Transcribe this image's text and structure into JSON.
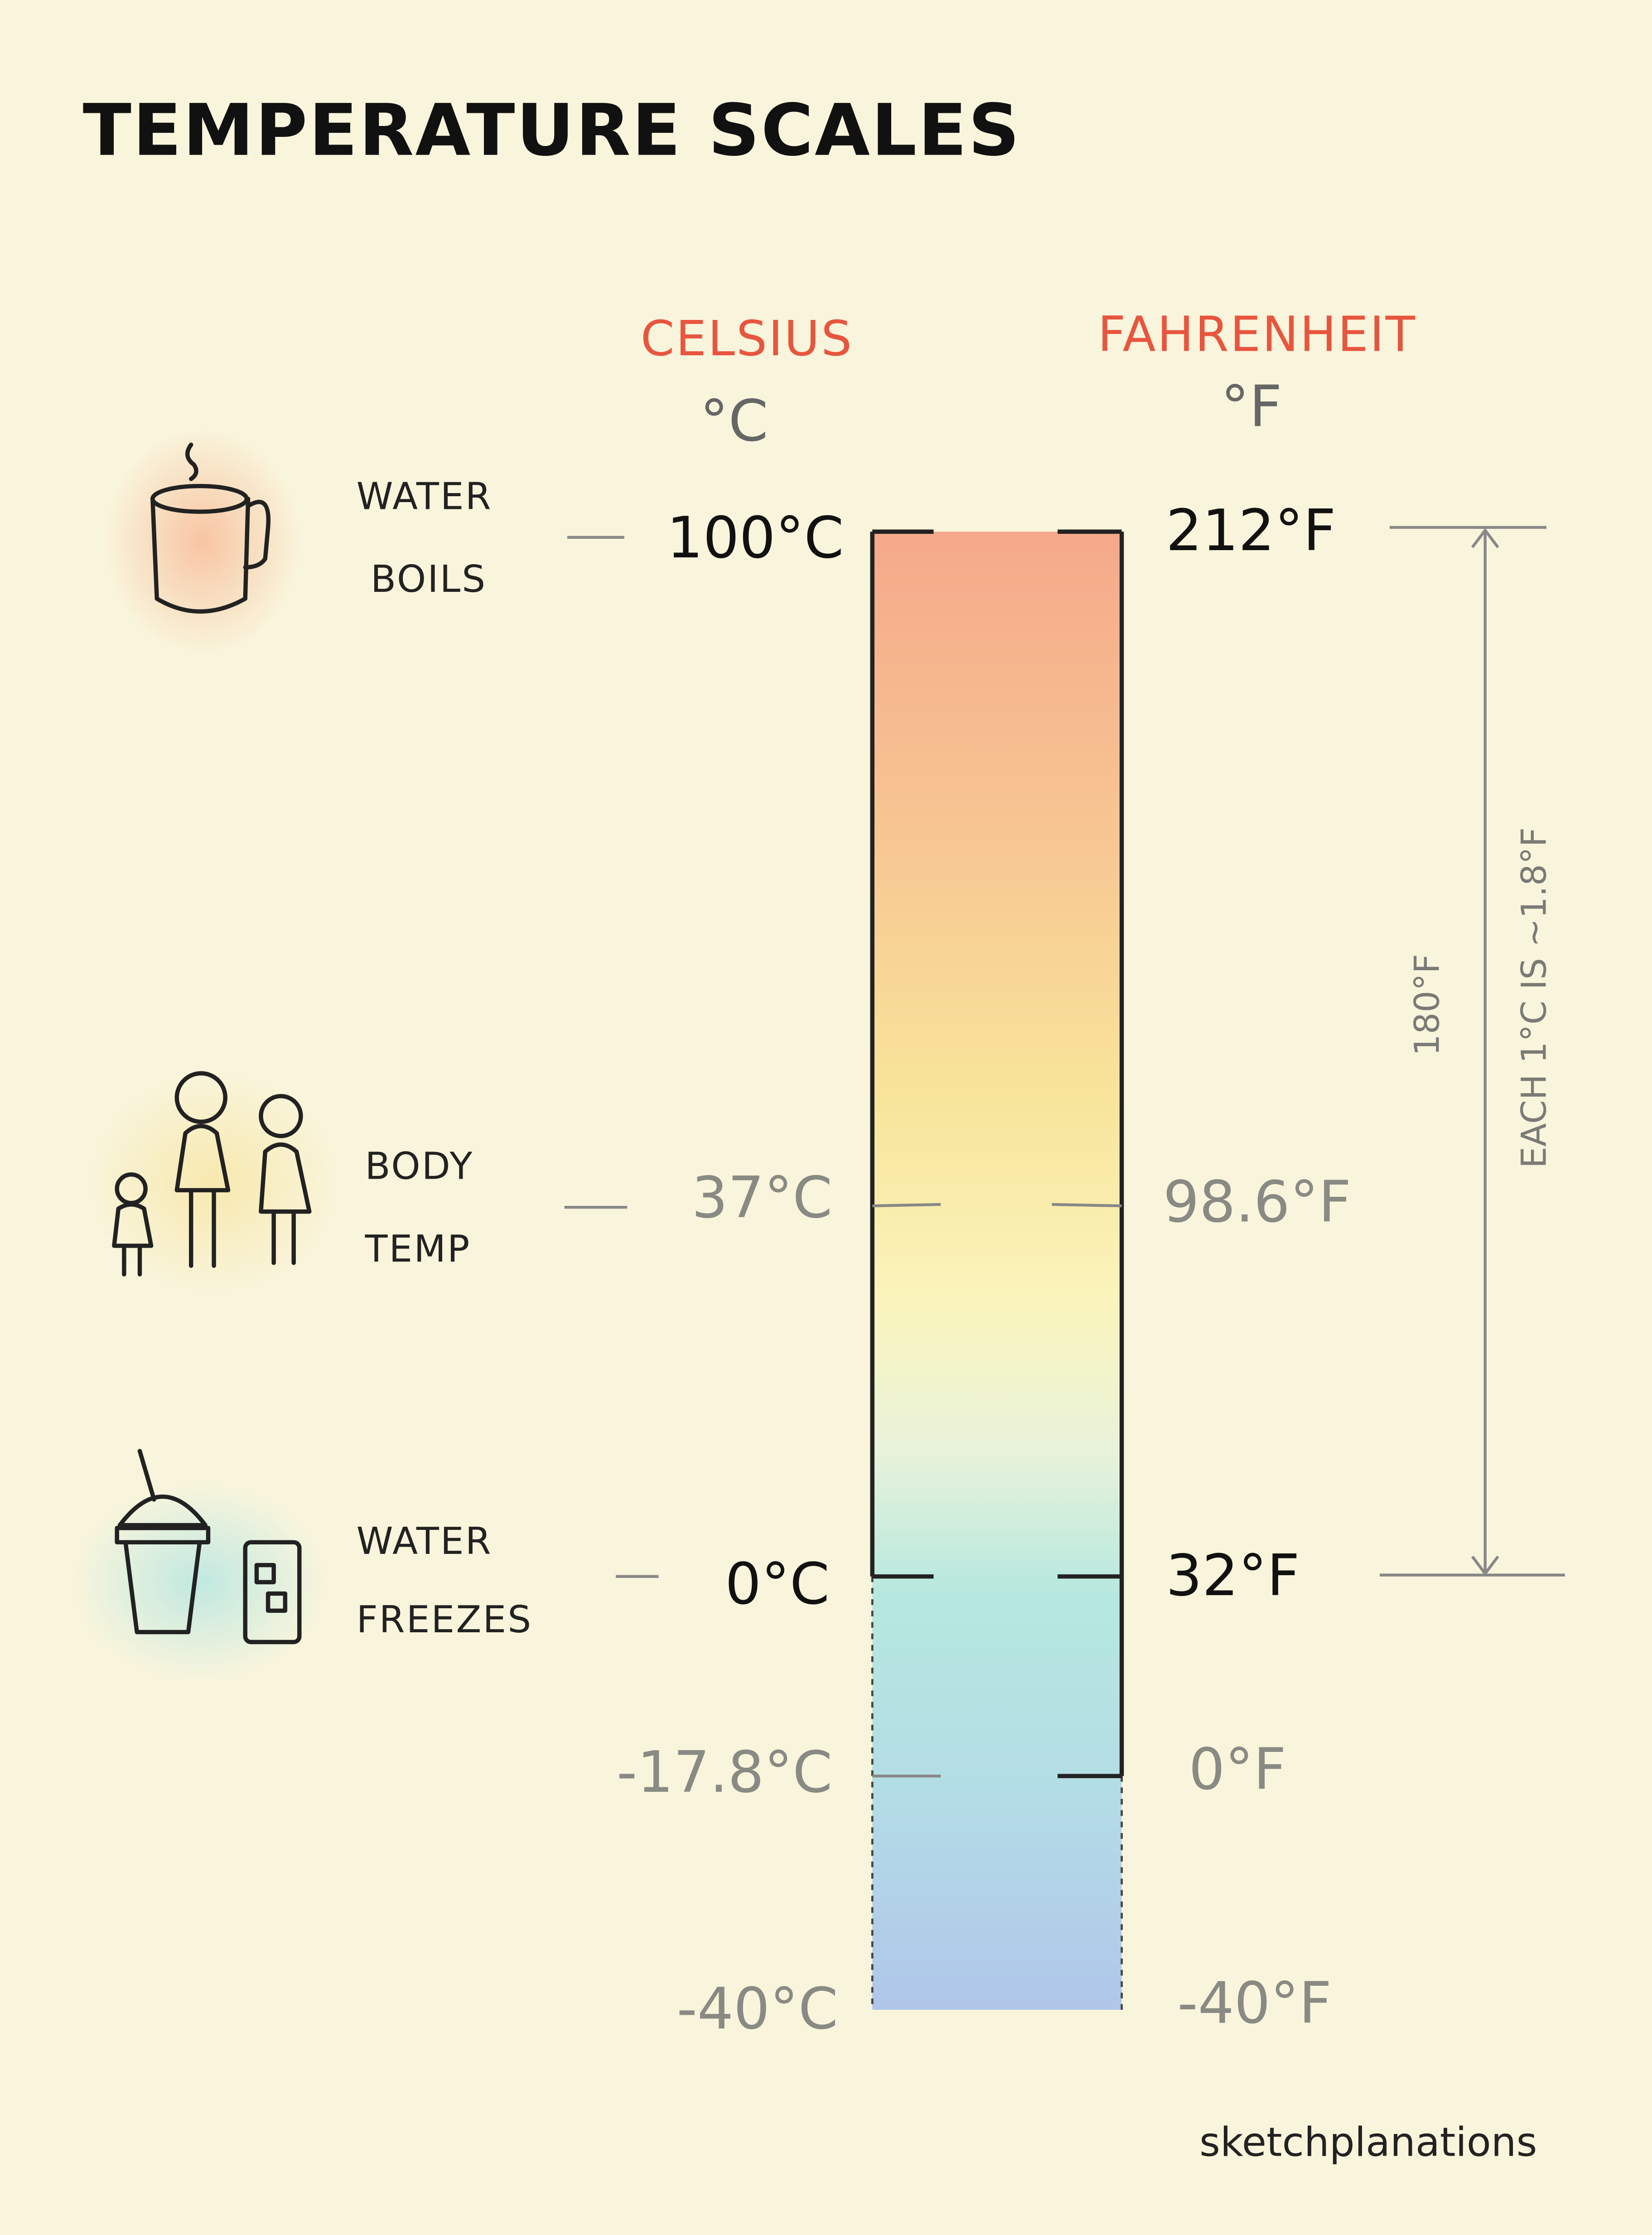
{
  "header": {
    "title": "TEMPERATURE SCALES"
  },
  "scales": [
    {
      "name": "CELSIUS",
      "unit": "°C"
    },
    {
      "name": "FAHRENHEIT",
      "unit": "°F"
    }
  ],
  "markers": [
    {
      "label": [
        "WATER",
        "BOILS"
      ],
      "celsius": "100°C",
      "fahrenheit": "212°F"
    },
    {
      "label": [
        "BODY",
        "TEMP"
      ],
      "celsius": "37°C",
      "fahrenheit": "98.6°F"
    },
    {
      "label": [
        "WATER",
        "FREEZES"
      ],
      "celsius": "0°C",
      "fahrenheit": "32°F"
    },
    {
      "celsius": "-17.8°C",
      "fahrenheit": "0°F"
    },
    {
      "celsius": "-40°C",
      "fahrenheit": "-40°F"
    }
  ],
  "annotations": {
    "span": "180°F",
    "ratio": "EACH 1°C IS ~1.8°F"
  },
  "footer": {
    "credit": "sketchplanations"
  }
}
